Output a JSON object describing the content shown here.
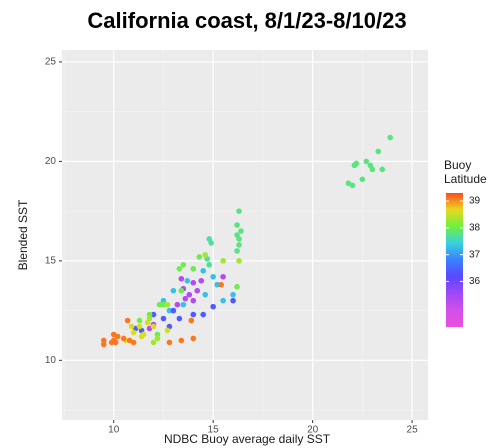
{
  "chart_data": {
    "type": "scatter",
    "title": "California coast, 8/1/23-8/10/23",
    "x_label": "NDBC Buoy average daily SST",
    "y_label": "Blended SST",
    "legend_title": "Buoy Latitude",
    "xlim": [
      7.4,
      25.8
    ],
    "ylim": [
      7.0,
      25.6
    ],
    "xticks": [
      10,
      15,
      20,
      25
    ],
    "yticks": [
      10,
      15,
      20,
      25
    ],
    "grid": true,
    "colorlim": [
      34.3,
      39.3
    ],
    "colorticks": [
      36,
      37,
      38,
      39
    ],
    "colors": [
      "#e850e0",
      "#d050e8",
      "#a048f8",
      "#5a48ff",
      "#3a80ff",
      "#38d0e0",
      "#70f040",
      "#e8d820",
      "#ff4a20"
    ],
    "series": [
      {
        "color_value": 37.8,
        "x": [
          21.8,
          22,
          22.2,
          22.5,
          22.7,
          22.9,
          23,
          23.3,
          23.5,
          23.9,
          22.1
        ],
        "values": [
          18.9,
          18.8,
          19.9,
          19.1,
          20,
          19.8,
          19.6,
          20.5,
          19.6,
          21.2,
          19.8
        ]
      },
      {
        "color_value": 37.8,
        "x": [
          16.3,
          16.2,
          16.2,
          16.3,
          16.4,
          16.2,
          16.3
        ],
        "values": [
          17.5,
          16.8,
          16.3,
          16.1,
          16.5,
          15.5,
          15.8
        ]
      },
      {
        "color_value": 37.7,
        "x": [
          14.8,
          14.9,
          14.7,
          14.8
        ],
        "values": [
          16.1,
          15.9,
          15.1,
          14.8
        ]
      },
      {
        "color_value": 37.3,
        "x": [
          14.5,
          15,
          15.2,
          14.6,
          13.7,
          13.5,
          12.5,
          13,
          16,
          15.5,
          12.8,
          14
        ],
        "values": [
          14.5,
          14.2,
          13.8,
          13.3,
          14,
          12.8,
          13,
          13.5,
          13.3,
          13,
          12.5,
          14.6
        ]
      },
      {
        "color_value": 35.3,
        "x": [
          13.5,
          13.8,
          14,
          14.2,
          13.2,
          13.6,
          14.4,
          15.5,
          11.8,
          12,
          13.4,
          14
        ],
        "values": [
          13.6,
          13.3,
          13.9,
          13.5,
          12.8,
          13.1,
          14,
          14.2,
          11.6,
          11.8,
          14.1,
          13
        ]
      },
      {
        "color_value": 36.4,
        "x": [
          12.5,
          13,
          13.3,
          12.8,
          14,
          14.5,
          16,
          11.4,
          11.1,
          12,
          15
        ],
        "values": [
          12.1,
          12.5,
          12.1,
          11.7,
          12.3,
          12.3,
          13,
          11.5,
          11.6,
          12.3,
          12.7
        ]
      },
      {
        "color_value": 38.0,
        "x": [
          13.5,
          14,
          13.3,
          12.5,
          12.2,
          11.8,
          12.3,
          11.3,
          13.4,
          16.2,
          14.3
        ],
        "values": [
          14.8,
          14.6,
          14.6,
          12.8,
          11.3,
          12.3,
          12.8,
          12,
          13.5,
          13.7,
          15.2
        ]
      },
      {
        "color_value": 38.6,
        "x": [
          11.5,
          11,
          11.4,
          10.9,
          11.7,
          12,
          10.6,
          11.3,
          12.7
        ],
        "values": [
          11.3,
          11.4,
          11.2,
          11.7,
          11.9,
          11.7,
          11,
          11.7,
          11.5
        ]
      },
      {
        "color_value": 39.1,
        "x": [
          9.5,
          9.5,
          10,
          10.2,
          10.5,
          10.8,
          10.1,
          10.7,
          11,
          13.4,
          12.8,
          14,
          15.4,
          13.9,
          10,
          9.9
        ],
        "values": [
          11,
          10.8,
          11.3,
          11.2,
          11.1,
          11,
          10.9,
          12,
          10.9,
          11,
          10.9,
          11.1,
          13.8,
          12,
          11,
          10.9
        ]
      },
      {
        "color_value": 38.3,
        "x": [
          11.8,
          12.7,
          12,
          12.2,
          14.6,
          15.5,
          16.3
        ],
        "values": [
          12.1,
          12.8,
          10.9,
          11.1,
          15.3,
          15,
          15
        ]
      }
    ]
  }
}
